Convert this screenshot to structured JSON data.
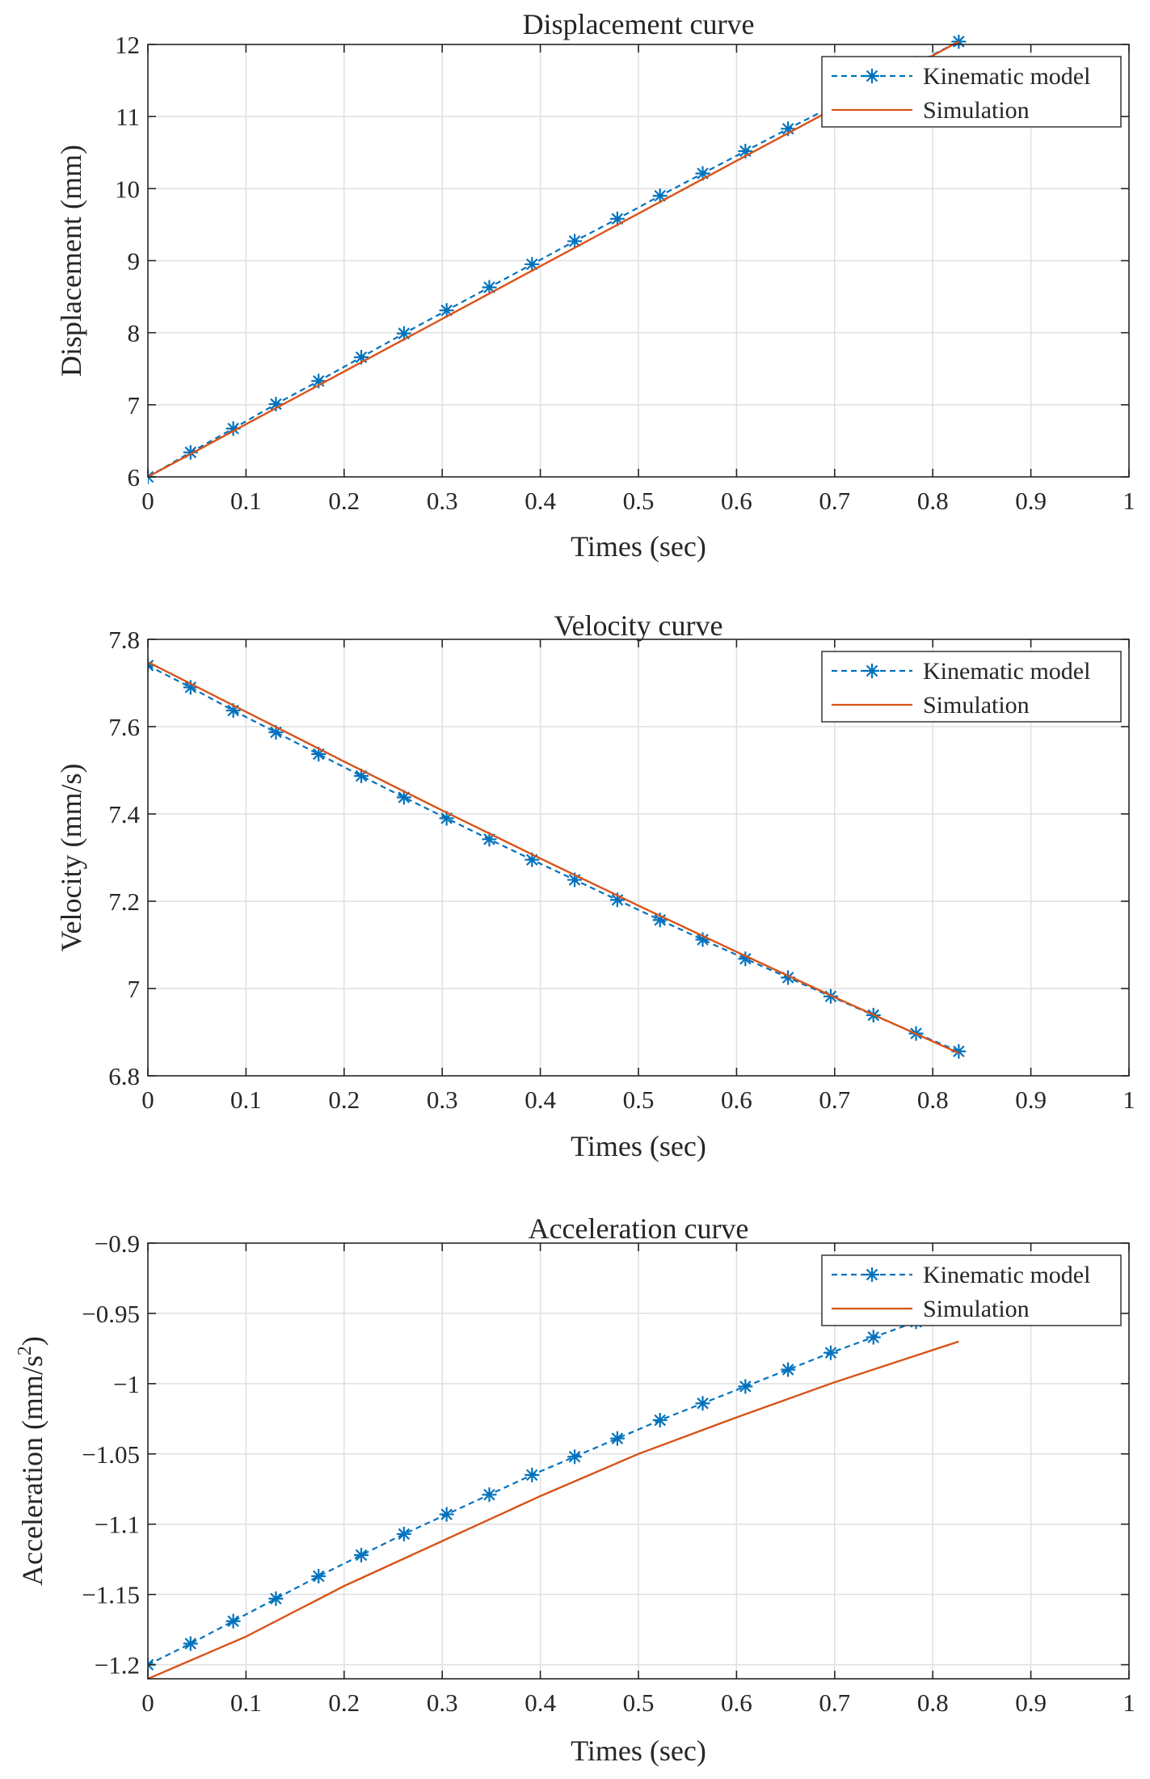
{
  "colors": {
    "kinematic": "#0072BD",
    "simulation": "#D95319",
    "grid": "#dfdfdf",
    "axes": "#262626"
  },
  "chart_data": [
    {
      "type": "line",
      "title": "Displacement curve",
      "xlabel": "Times (sec)",
      "ylabel": "Displacement (mm)",
      "ylabel_sup": "",
      "ylabel_tail": "",
      "xlim": [
        0,
        1
      ],
      "ylim": [
        6,
        12
      ],
      "xticks": [
        0,
        0.1,
        0.2,
        0.3,
        0.4,
        0.5,
        0.6,
        0.7,
        0.8,
        0.9,
        1
      ],
      "xtick_labels": [
        "0",
        "0.1",
        "0.2",
        "0.3",
        "0.4",
        "0.5",
        "0.6",
        "0.7",
        "0.8",
        "0.9",
        "1"
      ],
      "yticks": [
        6,
        7,
        8,
        9,
        10,
        11,
        12
      ],
      "ytick_labels": [
        "6",
        "7",
        "8",
        "9",
        "10",
        "11",
        "12"
      ],
      "grid": true,
      "legend_position": "top-right",
      "series": [
        {
          "name": "Kinematic model",
          "style": "dashed-star",
          "x": [
            0,
            0.0435,
            0.087,
            0.1305,
            0.174,
            0.2175,
            0.261,
            0.3045,
            0.348,
            0.3915,
            0.435,
            0.4785,
            0.522,
            0.5655,
            0.609,
            0.6525,
            0.696,
            0.7395,
            0.783,
            0.8265
          ],
          "y": [
            6.0,
            6.34,
            6.67,
            7.01,
            7.33,
            7.66,
            7.99,
            8.31,
            8.63,
            8.95,
            9.27,
            9.58,
            9.9,
            10.21,
            10.52,
            10.83,
            11.13,
            11.44,
            11.74,
            12.04
          ]
        },
        {
          "name": "Simulation",
          "style": "solid",
          "x": [
            0,
            0.8265
          ],
          "y": [
            6.0,
            12.04
          ]
        }
      ]
    },
    {
      "type": "line",
      "title": "Velocity curve",
      "xlabel": "Times (sec)",
      "ylabel": "Velocity (mm/s)",
      "ylabel_sup": "",
      "ylabel_tail": "",
      "xlim": [
        0,
        1
      ],
      "ylim": [
        6.8,
        7.8
      ],
      "xticks": [
        0,
        0.1,
        0.2,
        0.3,
        0.4,
        0.5,
        0.6,
        0.7,
        0.8,
        0.9,
        1
      ],
      "xtick_labels": [
        "0",
        "0.1",
        "0.2",
        "0.3",
        "0.4",
        "0.5",
        "0.6",
        "0.7",
        "0.8",
        "0.9",
        "1"
      ],
      "yticks": [
        6.8,
        7.0,
        7.2,
        7.4,
        7.6,
        7.8
      ],
      "ytick_labels": [
        "6.8",
        "7",
        "7.2",
        "7.4",
        "7.6",
        "7.8"
      ],
      "grid": true,
      "legend_position": "top-right",
      "series": [
        {
          "name": "Kinematic model",
          "style": "dashed-star",
          "x": [
            0,
            0.0435,
            0.087,
            0.1305,
            0.174,
            0.2175,
            0.261,
            0.3045,
            0.348,
            0.3915,
            0.435,
            0.4785,
            0.522,
            0.5655,
            0.609,
            0.6525,
            0.696,
            0.7395,
            0.783,
            0.8265
          ],
          "y": [
            7.74,
            7.69,
            7.637,
            7.587,
            7.537,
            7.487,
            7.438,
            7.39,
            7.342,
            7.295,
            7.249,
            7.203,
            7.157,
            7.112,
            7.068,
            7.025,
            6.982,
            6.939,
            6.897,
            6.856
          ]
        },
        {
          "name": "Simulation",
          "style": "solid",
          "x": [
            0,
            0.1,
            0.2,
            0.3,
            0.4,
            0.5,
            0.6,
            0.7,
            0.8265
          ],
          "y": [
            7.748,
            7.634,
            7.52,
            7.408,
            7.298,
            7.19,
            7.084,
            6.98,
            6.852
          ]
        }
      ]
    },
    {
      "type": "line",
      "title": "Acceleration curve",
      "xlabel": "Times (sec)",
      "ylabel": "Acceleration (mm/s",
      "ylabel_sup": "2",
      "ylabel_tail": ")",
      "xlim": [
        0,
        1
      ],
      "ylim": [
        -1.21,
        -0.9
      ],
      "xticks": [
        0,
        0.1,
        0.2,
        0.3,
        0.4,
        0.5,
        0.6,
        0.7,
        0.8,
        0.9,
        1
      ],
      "xtick_labels": [
        "0",
        "0.1",
        "0.2",
        "0.3",
        "0.4",
        "0.5",
        "0.6",
        "0.7",
        "0.8",
        "0.9",
        "1"
      ],
      "yticks": [
        -1.2,
        -1.15,
        -1.1,
        -1.05,
        -1.0,
        -0.95,
        -0.9
      ],
      "ytick_labels": [
        "−1.2",
        "−1.15",
        "−1.1",
        "−1.05",
        "−1",
        "−0.95",
        "−0.9"
      ],
      "grid": true,
      "legend_position": "top-right",
      "series": [
        {
          "name": "Kinematic model",
          "style": "dashed-star",
          "x": [
            0,
            0.0435,
            0.087,
            0.1305,
            0.174,
            0.2175,
            0.261,
            0.3045,
            0.348,
            0.3915,
            0.435,
            0.4785,
            0.522,
            0.5655,
            0.609,
            0.6525,
            0.696,
            0.7395,
            0.783,
            0.8265
          ],
          "y": [
            -1.2,
            -1.185,
            -1.169,
            -1.153,
            -1.137,
            -1.122,
            -1.107,
            -1.093,
            -1.079,
            -1.065,
            -1.052,
            -1.039,
            -1.026,
            -1.014,
            -1.002,
            -0.99,
            -0.978,
            -0.967,
            -0.956,
            -0.945
          ]
        },
        {
          "name": "Simulation",
          "style": "solid",
          "x": [
            0,
            0.1,
            0.2,
            0.3,
            0.4,
            0.5,
            0.6,
            0.7,
            0.8265
          ],
          "y": [
            -1.21,
            -1.18,
            -1.144,
            -1.112,
            -1.08,
            -1.05,
            -1.024,
            -0.999,
            -0.97
          ]
        }
      ]
    }
  ]
}
